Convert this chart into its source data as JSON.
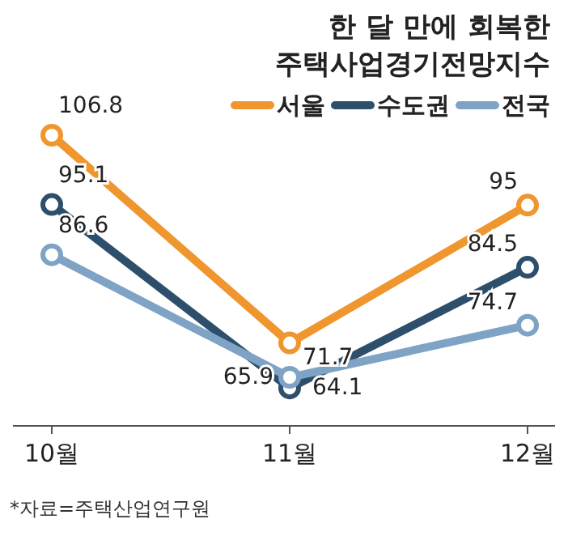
{
  "chart_data": {
    "type": "line",
    "title": "한 달 만에 회복한\n주택사업경기전망지수",
    "categories": [
      "10월",
      "11월",
      "12월"
    ],
    "series": [
      {
        "name": "서울",
        "color": "#f0962e",
        "values": [
          106.8,
          71.7,
          95
        ]
      },
      {
        "name": "수도권",
        "color": "#2e4f6b",
        "values": [
          95.1,
          64.1,
          84.5
        ]
      },
      {
        "name": "전국",
        "color": "#7fa3c4",
        "values": [
          86.6,
          65.9,
          74.7
        ]
      }
    ],
    "tick_labels": "x",
    "data_labels": true,
    "legend": "top right",
    "marker": "circle",
    "line_style": "solid",
    "grid": false,
    "annotations": [
      "*자료=주택산업연구원"
    ]
  }
}
